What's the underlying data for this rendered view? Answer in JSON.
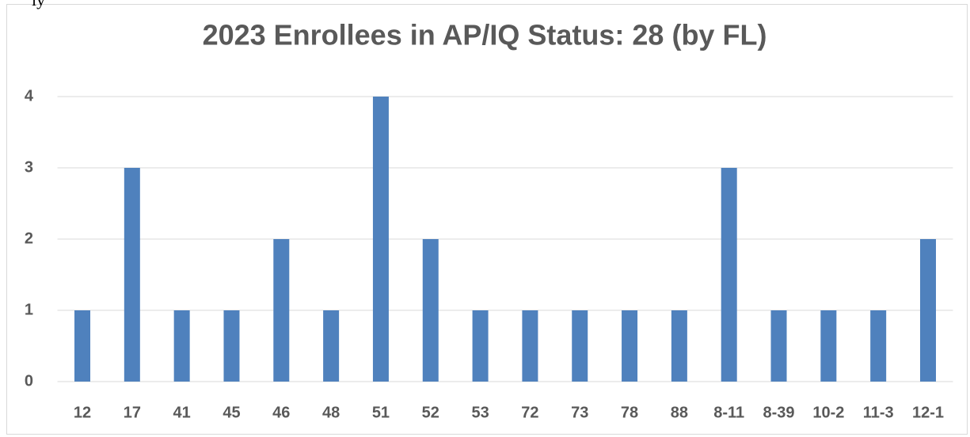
{
  "fragment": "ly",
  "chart_data": {
    "type": "bar",
    "title": "2023 Enrollees in AP/IQ Status: 28 (by FL)",
    "categories": [
      "12",
      "17",
      "41",
      "45",
      "46",
      "48",
      "51",
      "52",
      "53",
      "72",
      "73",
      "78",
      "88",
      "8-11",
      "8-39",
      "10-2",
      "11-3",
      "12-1"
    ],
    "values": [
      1,
      3,
      1,
      1,
      2,
      1,
      4,
      2,
      1,
      1,
      1,
      1,
      1,
      3,
      1,
      1,
      1,
      2
    ],
    "color": "#4f81bd",
    "ylim": [
      0,
      4
    ],
    "yticks": [
      0,
      1,
      2,
      3,
      4
    ],
    "grid": true
  }
}
